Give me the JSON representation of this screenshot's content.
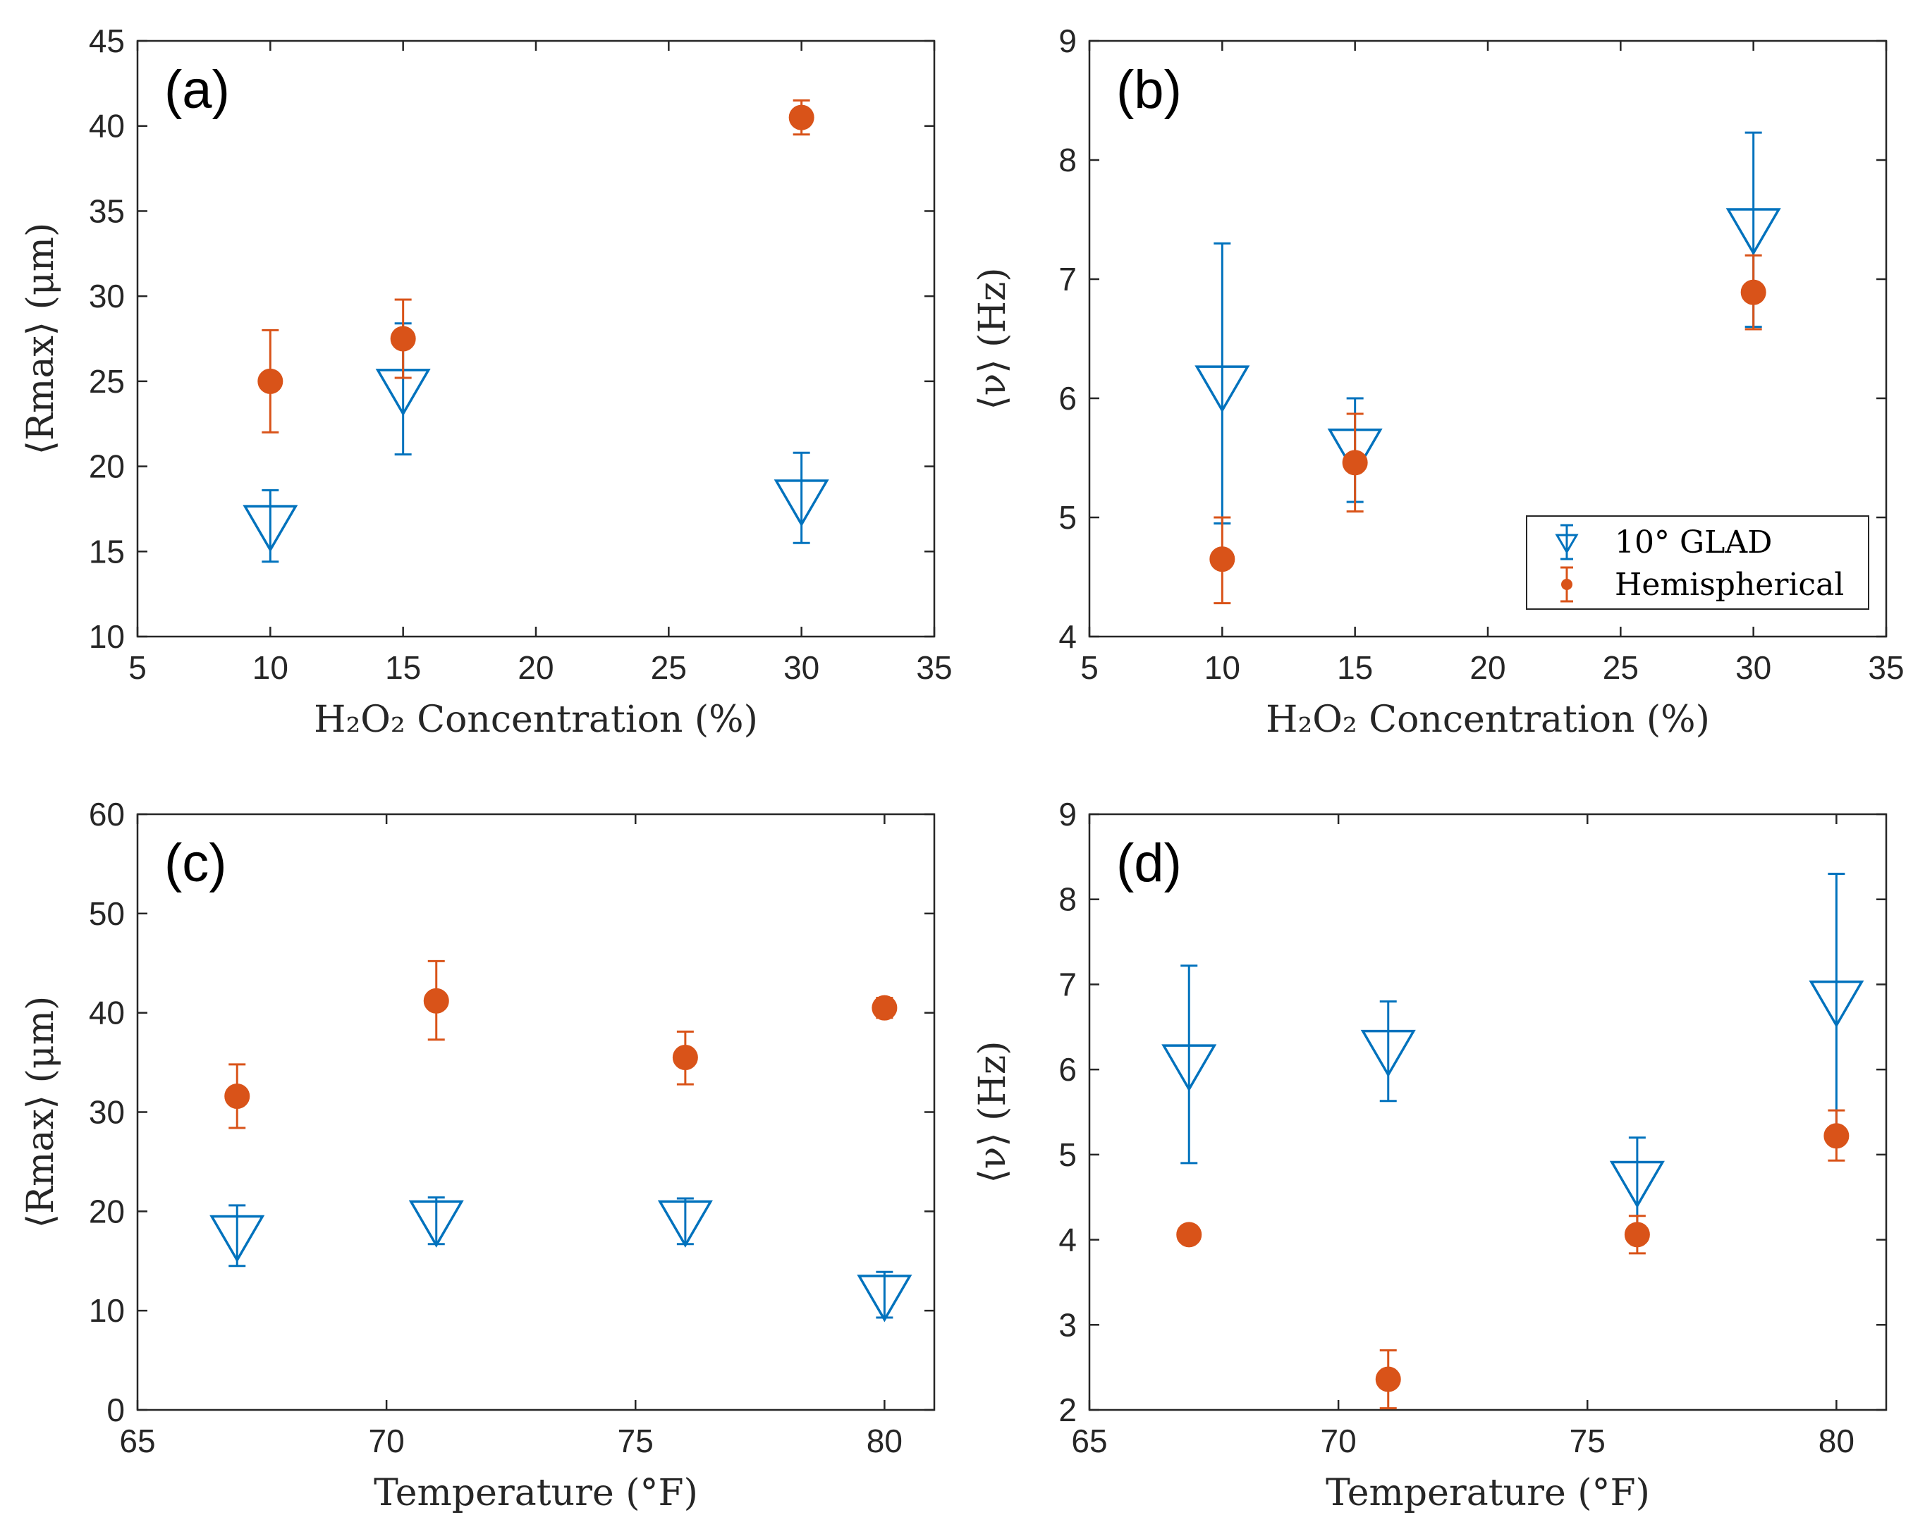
{
  "colors": {
    "glad": "#0072BD",
    "hemi": "#D95319",
    "axis": "#262626"
  },
  "legend": {
    "glad": "10° GLAD",
    "hemi": "Hemispherical"
  },
  "chart_data": [
    {
      "type": "scatter",
      "panel": "(a)",
      "xlabel": "H₂O₂ Concentration (%)",
      "ylabel": "⟨Rmax⟩ (μm)",
      "xlim": [
        5,
        35
      ],
      "ylim": [
        10,
        45
      ],
      "xticks": [
        5,
        10,
        15,
        20,
        25,
        30,
        35
      ],
      "yticks": [
        10,
        15,
        20,
        25,
        30,
        35,
        40,
        45
      ],
      "series": [
        {
          "name": "10° GLAD",
          "marker": "triangle-down",
          "x": [
            10,
            15,
            30
          ],
          "y": [
            16.5,
            24.5,
            18.0
          ],
          "err_low": [
            14.4,
            20.7,
            15.5
          ],
          "err_high": [
            18.6,
            28.4,
            20.8
          ]
        },
        {
          "name": "Hemispherical",
          "marker": "circle",
          "x": [
            10,
            15,
            30
          ],
          "y": [
            25.0,
            27.5,
            40.5
          ],
          "err_low": [
            22.0,
            25.2,
            39.5
          ],
          "err_high": [
            28.0,
            29.8,
            41.5
          ]
        }
      ]
    },
    {
      "type": "scatter",
      "panel": "(b)",
      "xlabel": "H₂O₂ Concentration (%)",
      "ylabel": "⟨ν⟩ (Hz)",
      "xlim": [
        5,
        35
      ],
      "ylim": [
        4,
        9
      ],
      "xticks": [
        5,
        10,
        15,
        20,
        25,
        30,
        35
      ],
      "yticks": [
        4,
        5,
        6,
        7,
        8,
        9
      ],
      "legend": true,
      "series": [
        {
          "name": "10° GLAD",
          "marker": "triangle-down",
          "x": [
            10,
            15,
            30
          ],
          "y": [
            6.1,
            5.57,
            7.42
          ],
          "err_low": [
            4.95,
            5.13,
            6.6
          ],
          "err_high": [
            7.3,
            6.0,
            8.23
          ]
        },
        {
          "name": "Hemispherical",
          "marker": "circle",
          "x": [
            10,
            15,
            30
          ],
          "y": [
            4.65,
            5.46,
            6.89
          ],
          "err_low": [
            4.28,
            5.05,
            6.58
          ],
          "err_high": [
            5.0,
            5.87,
            7.2
          ]
        }
      ]
    },
    {
      "type": "scatter",
      "panel": "(c)",
      "xlabel": "Temperature (°F)",
      "ylabel": "⟨Rmax⟩ (μm)",
      "xlim": [
        65,
        81
      ],
      "ylim": [
        0,
        60
      ],
      "xticks": [
        65,
        70,
        75,
        80
      ],
      "yticks": [
        0,
        10,
        20,
        30,
        40,
        50,
        60
      ],
      "series": [
        {
          "name": "10° GLAD",
          "marker": "triangle-down",
          "x": [
            67,
            71,
            76,
            80
          ],
          "y": [
            17.5,
            19.0,
            19.0,
            11.5
          ],
          "err_low": [
            14.5,
            16.7,
            16.7,
            9.3
          ],
          "err_high": [
            20.6,
            21.4,
            21.3,
            13.9
          ]
        },
        {
          "name": "Hemispherical",
          "marker": "circle",
          "x": [
            67,
            71,
            76,
            80
          ],
          "y": [
            31.6,
            41.2,
            35.5,
            40.5
          ],
          "err_low": [
            28.4,
            37.3,
            32.8,
            39.5
          ],
          "err_high": [
            34.8,
            45.2,
            38.1,
            41.5
          ]
        }
      ]
    },
    {
      "type": "scatter",
      "panel": "(d)",
      "xlabel": "Temperature (°F)",
      "ylabel": "⟨ν⟩ (Hz)",
      "xlim": [
        65,
        81
      ],
      "ylim": [
        2,
        9
      ],
      "xticks": [
        65,
        70,
        75,
        80
      ],
      "yticks": [
        2,
        3,
        4,
        5,
        6,
        7,
        8,
        9
      ],
      "series": [
        {
          "name": "10° GLAD",
          "marker": "triangle-down",
          "x": [
            67,
            71,
            76,
            80
          ],
          "y": [
            6.05,
            6.22,
            4.68,
            6.8
          ],
          "err_low": [
            4.9,
            5.63,
            4.1,
            5.3
          ],
          "err_high": [
            7.22,
            6.8,
            5.2,
            8.3
          ]
        },
        {
          "name": "Hemispherical",
          "marker": "circle",
          "x": [
            67,
            71,
            76,
            80
          ],
          "y": [
            4.06,
            2.36,
            4.06,
            5.22
          ],
          "err_low": [
            3.98,
            2.02,
            3.84,
            4.93
          ],
          "err_high": [
            4.14,
            2.7,
            4.28,
            5.52
          ]
        }
      ]
    }
  ]
}
